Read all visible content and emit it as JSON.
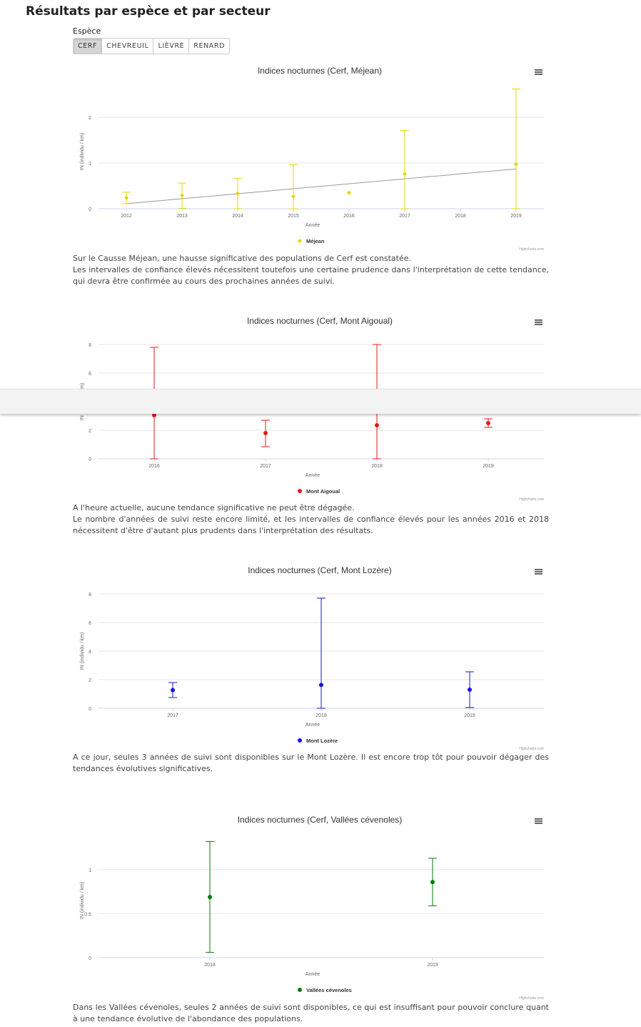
{
  "page": {
    "title": "Résultats par espèce et par secteur",
    "species_label": "Espèce",
    "species_buttons": [
      "CERF",
      "CHEVREUIL",
      "LIÈVRE",
      "RENARD"
    ],
    "active_species": "CERF"
  },
  "chart_data": [
    {
      "type": "scatter",
      "title": "Indices nocturnes (Cerf, Méjean)",
      "xlabel": "Année",
      "ylabel": "IN (individu / km)",
      "credits": "Highcharts.com",
      "series_name": "Méjean",
      "color": "#e1d800",
      "marker": "diamond",
      "categories": [
        "2012",
        "2013",
        "2014",
        "2015",
        "2016",
        "2017",
        "2018",
        "2019"
      ],
      "ylim": [
        0,
        2.5
      ],
      "yticks": [
        0,
        1,
        2
      ],
      "points": [
        {
          "x": "2012",
          "y": 0.24,
          "low": 0.11,
          "high": 0.36
        },
        {
          "x": "2013",
          "y": 0.29,
          "low": 0.01,
          "high": 0.56
        },
        {
          "x": "2014",
          "y": 0.33,
          "low": 0.0,
          "high": 0.66
        },
        {
          "x": "2015",
          "y": 0.27,
          "low": 0.0,
          "high": 0.96
        },
        {
          "x": "2016",
          "y": 0.35,
          "low": null,
          "high": null
        },
        {
          "x": "2017",
          "y": 0.76,
          "low": 0.0,
          "high": 1.71
        },
        {
          "x": "2019",
          "y": 0.97,
          "low": 0.0,
          "high": 2.62
        }
      ],
      "trend": {
        "from": {
          "x": "2012",
          "y": 0.11
        },
        "to": {
          "x": "2019",
          "y": 0.87
        }
      }
    },
    {
      "type": "scatter",
      "title": "Indices nocturnes (Cerf, Mont Aigoual)",
      "xlabel": "Année",
      "ylabel": "IN (individu / km)",
      "credits": "Highcharts.com",
      "series_name": "Mont Aigoual",
      "color": "#e31b1b",
      "marker": "circle",
      "categories": [
        "2016",
        "2017",
        "2018",
        "2019"
      ],
      "ylim": [
        0,
        8
      ],
      "yticks": [
        0,
        2,
        4,
        6,
        8
      ],
      "points": [
        {
          "x": "2016",
          "y": 3.05,
          "low": 0.0,
          "high": 7.8
        },
        {
          "x": "2017",
          "y": 1.8,
          "low": 0.85,
          "high": 2.7
        },
        {
          "x": "2018",
          "y": 2.35,
          "low": 0.0,
          "high": 8.0
        },
        {
          "x": "2019",
          "y": 2.5,
          "low": 2.2,
          "high": 2.8
        }
      ]
    },
    {
      "type": "scatter",
      "title": "Indices nocturnes (Cerf, Mont Lozère)",
      "xlabel": "Année",
      "ylabel": "IN (individu / km)",
      "credits": "Highcharts.com",
      "series_name": "Mont Lozère",
      "color": "#1515d8",
      "marker": "circle",
      "categories": [
        "2017",
        "2018",
        "2019"
      ],
      "ylim": [
        0,
        8
      ],
      "yticks": [
        0,
        2,
        4,
        6,
        8
      ],
      "points": [
        {
          "x": "2017",
          "y": 1.27,
          "low": 0.75,
          "high": 1.8
        },
        {
          "x": "2018",
          "y": 1.63,
          "low": 0.0,
          "high": 7.7
        },
        {
          "x": "2019",
          "y": 1.3,
          "low": 0.05,
          "high": 2.55
        }
      ]
    },
    {
      "type": "scatter",
      "title": "Indices nocturnes (Cerf, Vallées cévenoles)",
      "xlabel": "Année",
      "ylabel": "IN (individu / km)",
      "credits": "Highcharts.com",
      "series_name": "Vallées cévenoles",
      "color": "#0a7a0a",
      "marker": "circle",
      "categories": [
        "2018",
        "2019"
      ],
      "ylim": [
        0,
        1.3
      ],
      "yticks": [
        0,
        0.5,
        1
      ],
      "points": [
        {
          "x": "2018",
          "y": 0.69,
          "low": 0.06,
          "high": 1.32
        },
        {
          "x": "2019",
          "y": 0.86,
          "low": 0.59,
          "high": 1.13
        }
      ]
    }
  ],
  "descriptions": [
    [
      "Sur le Causse Méjean, une hausse significative des populations de Cerf est constatée.",
      "Les intervalles de confiance élevés nécessitent toutefois une certaine prudence dans l'interprétation de cette tendance, qui devra être confirmée au cours des prochaines années de suivi."
    ],
    [
      "A l'heure actuelle, aucune tendance significative ne peut être dégagée.",
      "Le nombre d'années de suivi reste encore limité, et les intervalles de confiance élevés pour les années 2016 et 2018 nécessitent d'être d'autant plus prudents dans l'interprétation des résultats."
    ],
    [
      "A ce jour, seules 3 années de suivi sont disponibles sur le Mont Lozère. Il est encore trop tôt pour pouvoir dégager des tendances évolutives significatives."
    ],
    [
      "Dans les Vallées cévenoles, seules 2 années de suivi sont disponibles, ce qui est insuffisant pour pouvoir conclure quant à une tendance évolutive de l'abondance des populations."
    ]
  ]
}
